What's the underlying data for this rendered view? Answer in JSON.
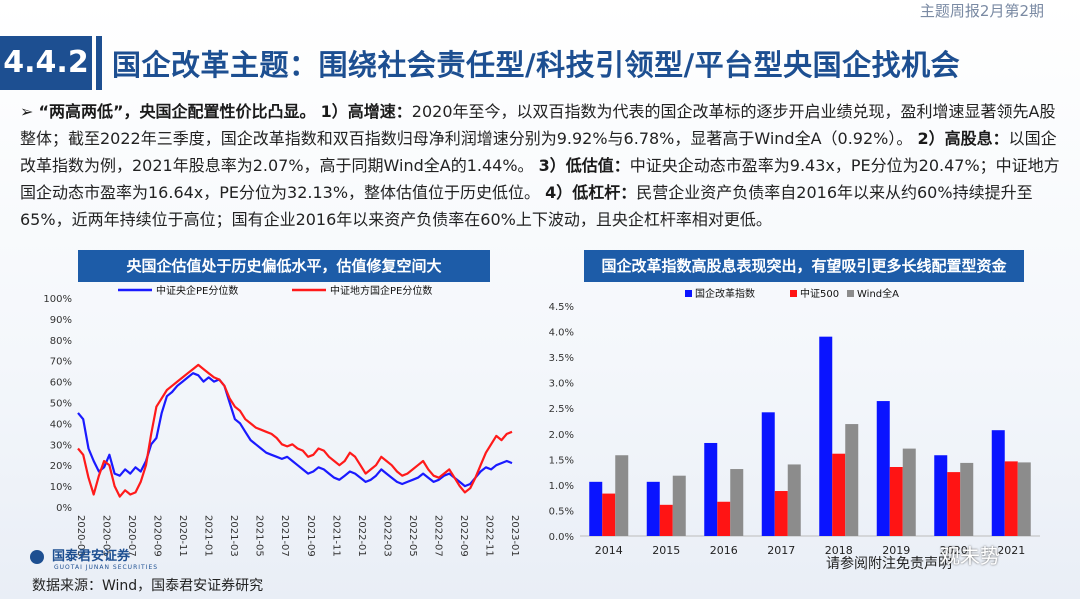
{
  "header": {
    "section": "4.4.2",
    "title": "国企改革主题：围绕社会责任型/科技引领型/平台型央国企找机会",
    "report_tag": "主题周报2月第2期"
  },
  "paragraph": {
    "intro": "“两高两低”，央国企配置性价比凸显。",
    "p1_label": "1）高增速：",
    "p1_text": "2020年至今，以双百指数为代表的国企改革标的逐步开启业绩兑现，盈利增速显著领先A股整体；截至2022年三季度，国企改革指数和双百指数归母净利润增速分别为9.92%与6.78%，显著高于Wind全A（0.92%）。",
    "p2_label": "2）高股息：",
    "p2_text": "以国企改革指数为例，2021年股息率为2.07%，高于同期Wind全A的1.44%。",
    "p3_label": "3）低估值：",
    "p3_text": "中证央企动态市盈率为9.43x，PE分位为20.47%；中证地方国企动态市盈率为16.64x，PE分位为32.13%，整体估值位于历史低位。",
    "p4_label": "4）低杠杆：",
    "p4_text": "民营企业资产负债率自2016年以来从约60%持续提升至65%，近两年持续位于高位；国有企业2016年以来资产负债率在60%上下波动，且央企杠杆率相对更低。"
  },
  "left_chart_title": "央国企估值处于历史偏低水平，估值修复空间大",
  "right_chart_title": "国企改革指数高股息表现突出，有望吸引更多长线配置型资金",
  "footer": {
    "logo": "国泰君安证券",
    "logo_en": "GUOTAI JUNAN SECURITIES",
    "source": "数据来源：Wind，国泰君安证券研究",
    "note": "请参阅附注免责声明",
    "watermark": "观未势"
  },
  "chart_data": [
    {
      "type": "line",
      "title": "央国企估值处于历史偏低水平，估值修复空间大",
      "ylim": [
        0,
        100
      ],
      "y_ticks": [
        "0%",
        "10%",
        "20%",
        "30%",
        "40%",
        "50%",
        "60%",
        "70%",
        "80%",
        "90%",
        "100%"
      ],
      "x_ticks": [
        "2020-03",
        "2020-05",
        "2020-07",
        "2020-09",
        "2020-11",
        "2021-01",
        "2021-03",
        "2021-05",
        "2021-07",
        "2021-09",
        "2021-11",
        "2022-01",
        "2022-03",
        "2022-05",
        "2022-07",
        "2022-09",
        "2022-11",
        "2023-01"
      ],
      "grid": false,
      "legend": "top",
      "colors": [
        "#1a1aff",
        "#ff1a1a"
      ],
      "series": [
        {
          "name": "中证央企PE分位数",
          "values": [
            45,
            42,
            28,
            22,
            17,
            19,
            25,
            16,
            15,
            18,
            16,
            19,
            17,
            22,
            30,
            33,
            45,
            53,
            55,
            58,
            60,
            62,
            64,
            63,
            60,
            62,
            60,
            61,
            58,
            50,
            42,
            40,
            36,
            32,
            30,
            28,
            26,
            25,
            24,
            23,
            24,
            22,
            20,
            18,
            16,
            17,
            19,
            18,
            16,
            14,
            13,
            15,
            17,
            16,
            14,
            12,
            13,
            15,
            18,
            16,
            14,
            12,
            11,
            12,
            13,
            14,
            16,
            14,
            12,
            13,
            15,
            16,
            14,
            12,
            10,
            11,
            14,
            17,
            19,
            18,
            20,
            21,
            22,
            21
          ]
        },
        {
          "name": "中证地方国企PE分位数",
          "values": [
            28,
            25,
            14,
            6,
            15,
            22,
            20,
            10,
            5,
            8,
            6,
            7,
            12,
            20,
            35,
            48,
            52,
            56,
            58,
            60,
            62,
            64,
            66,
            68,
            66,
            64,
            62,
            61,
            58,
            52,
            48,
            46,
            42,
            40,
            38,
            37,
            36,
            35,
            33,
            30,
            29,
            30,
            28,
            27,
            24,
            25,
            28,
            27,
            24,
            22,
            20,
            22,
            26,
            24,
            20,
            16,
            18,
            20,
            24,
            22,
            20,
            17,
            15,
            16,
            18,
            20,
            22,
            18,
            15,
            14,
            16,
            18,
            14,
            10,
            7,
            9,
            14,
            20,
            26,
            30,
            34,
            32,
            35,
            36
          ]
        }
      ]
    },
    {
      "type": "bar",
      "title": "国企改革指数高股息表现突出，有望吸引更多长线配置型资金",
      "categories": [
        "2014",
        "2015",
        "2016",
        "2017",
        "2018",
        "2019",
        "2020",
        "2021"
      ],
      "ylim": [
        0,
        4.5
      ],
      "y_ticks": [
        "0.0%",
        "0.5%",
        "1.0%",
        "1.5%",
        "2.0%",
        "2.5%",
        "3.0%",
        "3.5%",
        "4.0%",
        "4.5%"
      ],
      "grid": false,
      "legend": "top",
      "colors": [
        "#0a14ff",
        "#ff1414",
        "#8c8c8c"
      ],
      "series": [
        {
          "name": "国企改革指数",
          "values": [
            1.06,
            1.06,
            1.82,
            2.42,
            3.9,
            2.64,
            1.58,
            2.07
          ]
        },
        {
          "name": "中证500",
          "values": [
            0.83,
            0.61,
            0.67,
            0.88,
            1.61,
            1.35,
            1.25,
            1.46
          ]
        },
        {
          "name": "Wind全A",
          "values": [
            1.58,
            1.18,
            1.31,
            1.4,
            2.19,
            1.71,
            1.43,
            1.44
          ]
        }
      ]
    }
  ]
}
